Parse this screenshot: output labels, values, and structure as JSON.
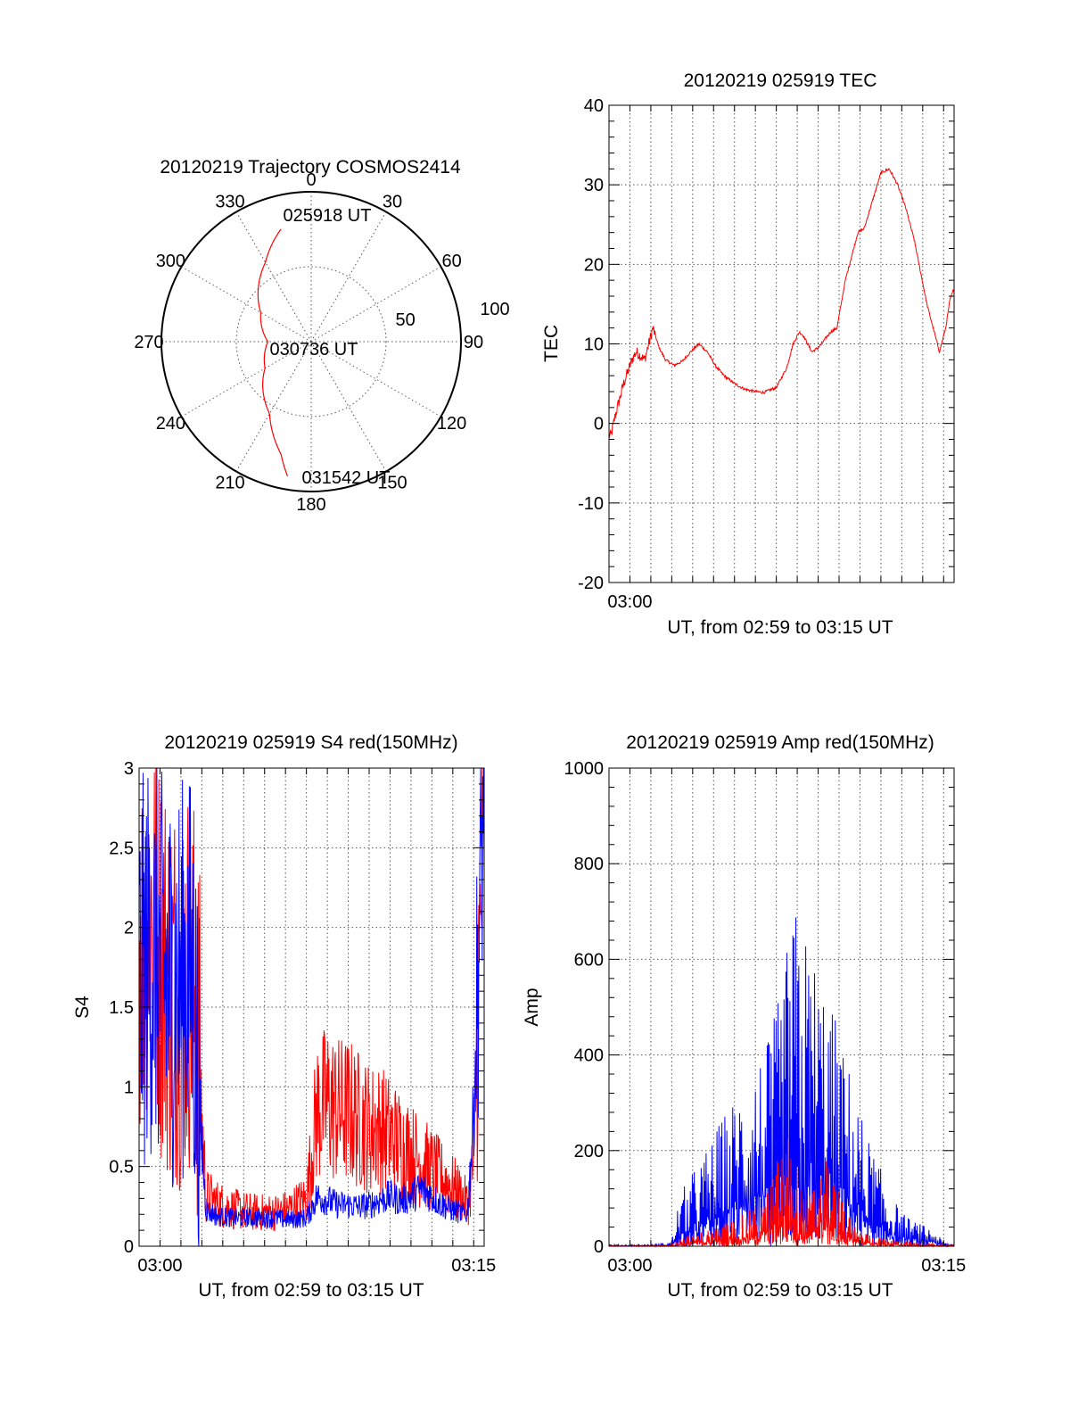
{
  "chart_data": [
    {
      "id": "trajectory",
      "type": "polar",
      "title": "20120219 Trajectory COSMOS2414",
      "azimuth_labels": [
        "0",
        "30",
        "60",
        "90",
        "120",
        "150",
        "180",
        "210",
        "240",
        "270",
        "300",
        "330"
      ],
      "radius_labels": [
        "50",
        "100"
      ],
      "annotations": [
        {
          "text": "025918 UT",
          "az": 12,
          "elev": 21
        },
        {
          "text": "030736 UT",
          "az": 180,
          "elev": 89
        },
        {
          "text": "031542 UT",
          "az": 170,
          "elev": 5
        }
      ],
      "series": [
        {
          "color": "#ff0000",
          "az": [
            -15,
            -30,
            -60,
            -90,
            -120,
            -150,
            -165,
            -170
          ],
          "elev": [
            20,
            35,
            55,
            64,
            58,
            40,
            20,
            8
          ]
        }
      ]
    },
    {
      "id": "tec",
      "type": "line",
      "title": "20120219 025919 TEC",
      "xlabel": "UT, from 02:59 to 03:15 UT",
      "ylabel": "TEC",
      "xlim": [
        0,
        16.5
      ],
      "ylim": [
        -20,
        40
      ],
      "yticks": [
        -20,
        -10,
        0,
        10,
        20,
        30,
        40
      ],
      "xticks": [
        {
          "value": 1,
          "label": "03:00"
        }
      ],
      "series": [
        {
          "color": "#ff0000",
          "x": [
            0.1,
            0.3,
            0.5,
            0.7,
            0.9,
            1.1,
            1.3,
            1.5,
            1.7,
            1.9,
            2.1,
            2.4,
            2.7,
            3.1,
            3.5,
            3.9,
            4.3,
            4.7,
            5.1,
            5.5,
            6.0,
            6.5,
            7.0,
            7.4,
            7.7,
            8.0,
            8.2,
            8.5,
            8.8,
            9.1,
            9.3,
            9.5,
            9.7,
            10.0,
            10.3,
            10.6,
            10.9,
            11.1,
            11.3,
            11.6,
            11.9,
            12.2,
            12.6,
            13.0,
            13.4,
            13.8,
            14.2,
            14.6,
            14.9,
            15.2,
            15.5,
            15.8,
            16.1,
            16.3,
            16.5
          ],
          "y": [
            -1.5,
            1,
            3,
            5,
            6.5,
            8,
            9,
            8.5,
            8,
            10,
            12,
            9.5,
            8,
            7.3,
            7.8,
            9,
            10,
            9,
            7.2,
            6,
            5,
            4.3,
            4.0,
            3.9,
            4.2,
            4.5,
            5.5,
            7,
            10,
            11.5,
            11,
            10,
            9,
            9.5,
            10.5,
            11.5,
            12,
            15,
            18,
            21,
            24,
            24.5,
            28,
            31.5,
            32,
            30,
            27,
            23,
            19,
            15,
            12,
            9,
            12,
            15.5,
            17
          ]
        }
      ]
    },
    {
      "id": "s4",
      "type": "line",
      "title": "20120219 025919 S4 red(150MHz)",
      "xlabel": "UT, from 02:59 to 03:15 UT",
      "ylabel": "S4",
      "xlim": [
        0,
        16.5
      ],
      "ylim": [
        0,
        3
      ],
      "yticks": [
        0,
        0.5,
        1,
        1.5,
        2,
        2.5,
        3
      ],
      "ytick_labels": [
        "0",
        "0.5",
        "1",
        "1.5",
        "2",
        "2.5",
        "3"
      ],
      "xticks": [
        {
          "value": 1,
          "label": "03:00"
        },
        {
          "value": 16,
          "label": "03:15"
        }
      ],
      "series": [
        {
          "color": "#ff0000",
          "x": [
            0.0,
            0.5,
            1.0,
            1.5,
            2.0,
            2.5,
            2.8,
            3.2,
            3.8,
            4.5,
            5.5,
            6.5,
            7.2,
            8.0,
            8.5,
            9.0,
            9.5,
            10.0,
            10.5,
            11.0,
            11.5,
            12.0,
            12.5,
            13.0,
            13.5,
            14.0,
            14.5,
            15.0,
            15.4,
            15.7,
            16.0,
            16.3,
            16.5
          ],
          "y": [
            1.8,
            2.0,
            1.7,
            1.5,
            1.5,
            1.6,
            1.2,
            0.3,
            0.25,
            0.22,
            0.2,
            0.2,
            0.22,
            0.28,
            0.8,
            0.85,
            0.8,
            0.8,
            0.75,
            0.7,
            0.7,
            0.65,
            0.6,
            0.55,
            0.5,
            0.45,
            0.4,
            0.35,
            0.3,
            0.25,
            0.5,
            1.8,
            2.8
          ]
        },
        {
          "color": "#0000ff",
          "x": [
            0.0,
            0.5,
            1.0,
            1.5,
            2.0,
            2.5,
            2.8,
            3.2,
            3.8,
            4.5,
            5.5,
            6.5,
            7.2,
            8.0,
            8.5,
            9.0,
            9.5,
            10.0,
            10.5,
            11.0,
            11.5,
            12.0,
            12.5,
            13.0,
            13.5,
            14.0,
            14.5,
            15.0,
            15.4,
            15.7,
            16.0,
            16.3,
            16.5
          ],
          "y": [
            1.5,
            1.7,
            1.6,
            1.5,
            1.55,
            1.6,
            1.0,
            0.22,
            0.18,
            0.17,
            0.17,
            0.17,
            0.16,
            0.17,
            0.3,
            0.28,
            0.25,
            0.25,
            0.24,
            0.25,
            0.28,
            0.3,
            0.28,
            0.3,
            0.35,
            0.3,
            0.25,
            0.22,
            0.2,
            0.2,
            0.8,
            2.0,
            2.9
          ]
        }
      ]
    },
    {
      "id": "amp",
      "type": "line",
      "title": "20120219 025919 Amp red(150MHz)",
      "xlabel": "UT, from 02:59 to 03:15 UT",
      "ylabel": "Amp",
      "xlim": [
        0,
        16.5
      ],
      "ylim": [
        0,
        1000
      ],
      "yticks": [
        0,
        200,
        400,
        600,
        800,
        1000
      ],
      "xticks": [
        {
          "value": 1,
          "label": "03:00"
        },
        {
          "value": 16,
          "label": "03:15"
        }
      ],
      "series": [
        {
          "color": "#0000ff",
          "x": [
            0.0,
            1.0,
            2.0,
            3.0,
            3.2,
            3.6,
            4.2,
            4.8,
            5.4,
            6.0,
            6.6,
            7.2,
            7.6,
            8.0,
            8.4,
            8.8,
            9.2,
            9.6,
            10.0,
            10.4,
            10.8,
            11.2,
            11.6,
            12.0,
            12.5,
            13.0,
            13.5,
            14.0,
            14.5,
            15.0,
            15.5,
            16.0,
            16.5
          ],
          "y": [
            2,
            2,
            2,
            5,
            40,
            70,
            95,
            120,
            150,
            175,
            205,
            225,
            240,
            275,
            330,
            400,
            380,
            360,
            330,
            300,
            270,
            230,
            200,
            160,
            120,
            90,
            60,
            40,
            30,
            25,
            20,
            5,
            2
          ]
        },
        {
          "color": "#ff0000",
          "x": [
            0.0,
            1.0,
            2.0,
            3.0,
            3.2,
            3.6,
            4.2,
            4.8,
            5.4,
            6.0,
            6.6,
            7.2,
            7.6,
            8.0,
            8.4,
            8.8,
            9.2,
            9.6,
            10.0,
            10.4,
            10.8,
            11.2,
            11.6,
            12.0,
            12.5,
            13.0,
            13.5,
            14.0,
            14.5,
            15.0,
            15.5,
            16.0,
            16.5
          ],
          "y": [
            1,
            1,
            1,
            2,
            8,
            12,
            16,
            20,
            26,
            32,
            40,
            52,
            70,
            100,
            140,
            120,
            70,
            60,
            90,
            110,
            80,
            50,
            30,
            20,
            14,
            10,
            8,
            6,
            5,
            4,
            3,
            2,
            1
          ]
        }
      ]
    }
  ]
}
